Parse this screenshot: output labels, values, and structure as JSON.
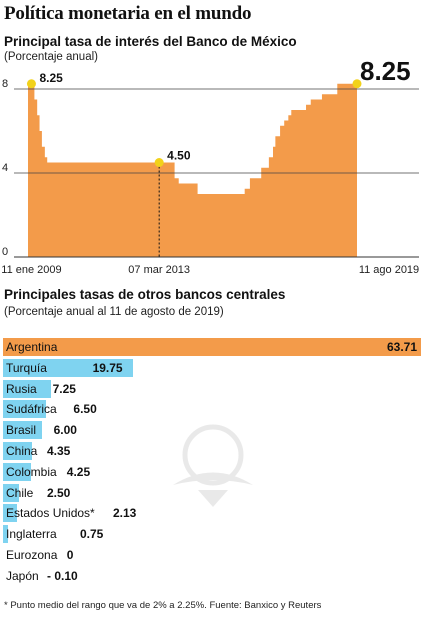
{
  "header": {
    "title": "Política monetaria en el mundo"
  },
  "chart_data": [
    {
      "type": "area",
      "title": "Principal tasa de interés del Banco de México",
      "ylabel": "(Porcentaje anual)",
      "ylim": [
        0,
        8.25
      ],
      "yticks": [
        0,
        4,
        8
      ],
      "grid": true,
      "color": "#f39b4a",
      "x": [
        "2008-12-01",
        "2009-01-11",
        "2009-02-15",
        "2009-03-20",
        "2009-04-17",
        "2009-05-15",
        "2009-06-19",
        "2009-07-17",
        "2013-03-07",
        "2013-09-06",
        "2013-10-25",
        "2014-06-06",
        "2015-12-17",
        "2016-02-17",
        "2016-06-30",
        "2016-09-29",
        "2016-11-17",
        "2016-12-15",
        "2017-02-09",
        "2017-03-30",
        "2017-05-18",
        "2017-06-22",
        "2017-12-14",
        "2018-02-08",
        "2018-06-21",
        "2018-12-20",
        "2019-08-11"
      ],
      "values": [
        8.25,
        8.25,
        7.5,
        6.75,
        6.0,
        5.25,
        4.75,
        4.5,
        4.5,
        3.75,
        3.5,
        3.0,
        3.25,
        3.75,
        4.25,
        4.75,
        5.25,
        5.75,
        6.25,
        6.5,
        6.75,
        7.0,
        7.25,
        7.5,
        7.75,
        8.25,
        8.25
      ],
      "tick_labels": [
        "11 ene 2009",
        "07 mar 2013",
        "11 ago 2019"
      ],
      "annotations": [
        {
          "label": "8.25",
          "x": "2009-01-11",
          "y": 8.25
        },
        {
          "label": "4.50",
          "x": "2013-03-07",
          "y": 4.5
        },
        {
          "label": "8.25",
          "x": "2019-08-11",
          "y": 8.25
        }
      ]
    },
    {
      "type": "bar",
      "title": "Principales tasas de otros bancos centrales",
      "subtitle": "(Porcentaje anual al 11 de agosto de 2019)",
      "categories": [
        "Argentina",
        "Turquía",
        "Rusia",
        "Sudáfrica",
        "Brasil",
        "China",
        "Colombia",
        "Chile",
        "Estados Unidos*",
        "Inglaterra",
        "Eurozona",
        "Japón"
      ],
      "values": [
        63.71,
        19.75,
        7.25,
        6.5,
        6.0,
        4.35,
        4.25,
        2.5,
        2.13,
        0.75,
        0,
        -0.1
      ],
      "value_labels": [
        "63.71",
        "19.75",
        "7.25",
        "6.50",
        "6.00",
        "4.35",
        "4.25",
        "2.50",
        "2.13",
        "0.75",
        "0",
        "- 0.10"
      ],
      "highlight": "Argentina",
      "colors": {
        "highlight": "#f39b4a",
        "default": "#7fd3f0"
      }
    }
  ],
  "footnote": "* Punto medio del rango que va de 2% a 2.25%.  Fuente: Banxico y Reuters"
}
